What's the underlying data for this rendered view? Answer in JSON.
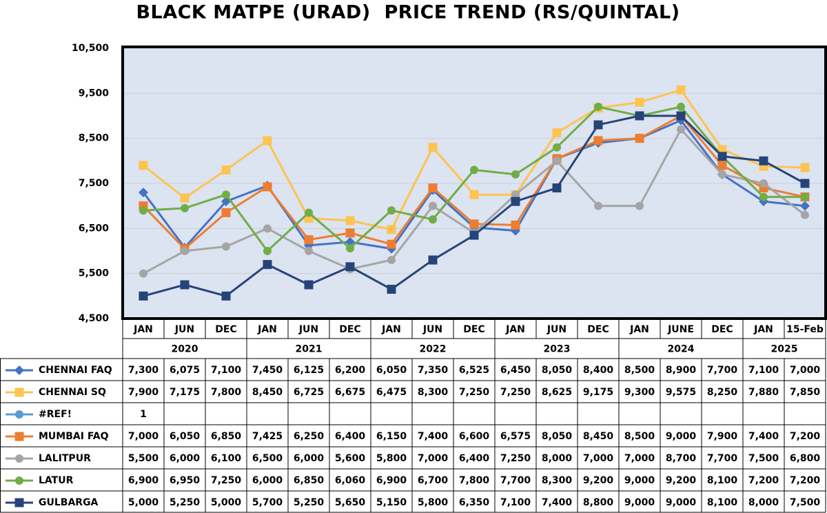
{
  "chart_data": {
    "type": "line",
    "title": "BLACK MATPE (URAD)  PRICE TREND (RS/QUINTAL)",
    "groups": [
      {
        "year": "2020",
        "months": [
          "JAN",
          "JUN",
          "DEC"
        ]
      },
      {
        "year": "2021",
        "months": [
          "JAN",
          "JUN",
          "DEC"
        ]
      },
      {
        "year": "2022",
        "months": [
          "JAN",
          "JUN",
          "DEC"
        ]
      },
      {
        "year": "2023",
        "months": [
          "JAN",
          "JUN",
          "DEC"
        ]
      },
      {
        "year": "2024",
        "months": [
          "JAN",
          "JUNE",
          "DEC"
        ]
      },
      {
        "year": "2025",
        "months": [
          "JAN",
          "15-Feb"
        ]
      }
    ],
    "ylim": [
      4500,
      10500
    ],
    "yticks": [
      {
        "value": 4500,
        "label": "4,500"
      },
      {
        "value": 5500,
        "label": "5,500"
      },
      {
        "value": 6500,
        "label": "6,500"
      },
      {
        "value": 7500,
        "label": "7,500"
      },
      {
        "value": 8500,
        "label": "8,500"
      },
      {
        "value": 9500,
        "label": "9,500"
      },
      {
        "value": 10500,
        "label": "10,500"
      }
    ],
    "grid": true,
    "series": [
      {
        "name": "CHENNAI FAQ",
        "color": "#4472c4",
        "marker": "diamond",
        "values": [
          7300,
          6075,
          7100,
          7450,
          6125,
          6200,
          6050,
          7350,
          6525,
          6450,
          8050,
          8400,
          8500,
          8900,
          7700,
          7100,
          7000
        ],
        "value_labels": [
          "7,300",
          "6,075",
          "7,100",
          "7,450",
          "6,125",
          "6,200",
          "6,050",
          "7,350",
          "6,525",
          "6,450",
          "8,050",
          "8,400",
          "8,500",
          "8,900",
          "7,700",
          "7,100",
          "7,000"
        ]
      },
      {
        "name": "CHENNAI SQ",
        "color": "#fcc450",
        "marker": "square",
        "values": [
          7900,
          7175,
          7800,
          8450,
          6725,
          6675,
          6475,
          8300,
          7250,
          7250,
          8625,
          9175,
          9300,
          9575,
          8250,
          7880,
          7850
        ],
        "value_labels": [
          "7,900",
          "7,175",
          "7,800",
          "8,450",
          "6,725",
          "6,675",
          "6,475",
          "8,300",
          "7,250",
          "7,250",
          "8,625",
          "9,175",
          "9,300",
          "9,575",
          "8,250",
          "7,880",
          "7,850"
        ]
      },
      {
        "name": "#REF!",
        "color": "#5b9bd5",
        "marker": "circle",
        "values": [
          1,
          null,
          null,
          null,
          null,
          null,
          null,
          null,
          null,
          null,
          null,
          null,
          null,
          null,
          null,
          null,
          null
        ],
        "value_labels": [
          "1",
          null,
          null,
          null,
          null,
          null,
          null,
          null,
          null,
          null,
          null,
          null,
          null,
          null,
          null,
          null,
          null
        ]
      },
      {
        "name": "MUMBAI FAQ",
        "color": "#ed7d31",
        "marker": "square",
        "values": [
          7000,
          6050,
          6850,
          7425,
          6250,
          6400,
          6150,
          7400,
          6600,
          6575,
          8050,
          8450,
          8500,
          9000,
          7900,
          7400,
          7200
        ],
        "value_labels": [
          "7,000",
          "6,050",
          "6,850",
          "7,425",
          "6,250",
          "6,400",
          "6,150",
          "7,400",
          "6,600",
          "6,575",
          "8,050",
          "8,450",
          "8,500",
          "9,000",
          "7,900",
          "7,400",
          "7,200"
        ]
      },
      {
        "name": "LALITPUR",
        "color": "#a5a5a5",
        "marker": "circle",
        "values": [
          5500,
          6000,
          6100,
          6500,
          6000,
          5600,
          5800,
          7000,
          6400,
          7250,
          8000,
          7000,
          7000,
          8700,
          7700,
          7500,
          6800
        ],
        "value_labels": [
          "5,500",
          "6,000",
          "6,100",
          "6,500",
          "6,000",
          "5,600",
          "5,800",
          "7,000",
          "6,400",
          "7,250",
          "8,000",
          "7,000",
          "7,000",
          "8,700",
          "7,700",
          "7,500",
          "6,800"
        ]
      },
      {
        "name": "LATUR",
        "color": "#70ad47",
        "marker": "circle",
        "values": [
          6900,
          6950,
          7250,
          6000,
          6850,
          6060,
          6900,
          6700,
          7800,
          7700,
          8300,
          9200,
          9000,
          9200,
          8100,
          7200,
          7200
        ],
        "value_labels": [
          "6,900",
          "6,950",
          "7,250",
          "6,000",
          "6,850",
          "6,060",
          "6,900",
          "6,700",
          "7,800",
          "7,700",
          "8,300",
          "9,200",
          "9,000",
          "9,200",
          "8,100",
          "7,200",
          "7,200"
        ]
      },
      {
        "name": "GULBARGA",
        "color": "#264478",
        "marker": "square",
        "values": [
          5000,
          5250,
          5000,
          5700,
          5250,
          5650,
          5150,
          5800,
          6350,
          7100,
          7400,
          8800,
          9000,
          9000,
          8100,
          8000,
          7500
        ],
        "value_labels": [
          "5,000",
          "5,250",
          "5,000",
          "5,700",
          "5,250",
          "5,650",
          "5,150",
          "5,800",
          "6,350",
          "7,100",
          "7,400",
          "8,800",
          "9,000",
          "9,000",
          "8,100",
          "8,000",
          "7,500"
        ]
      }
    ]
  }
}
